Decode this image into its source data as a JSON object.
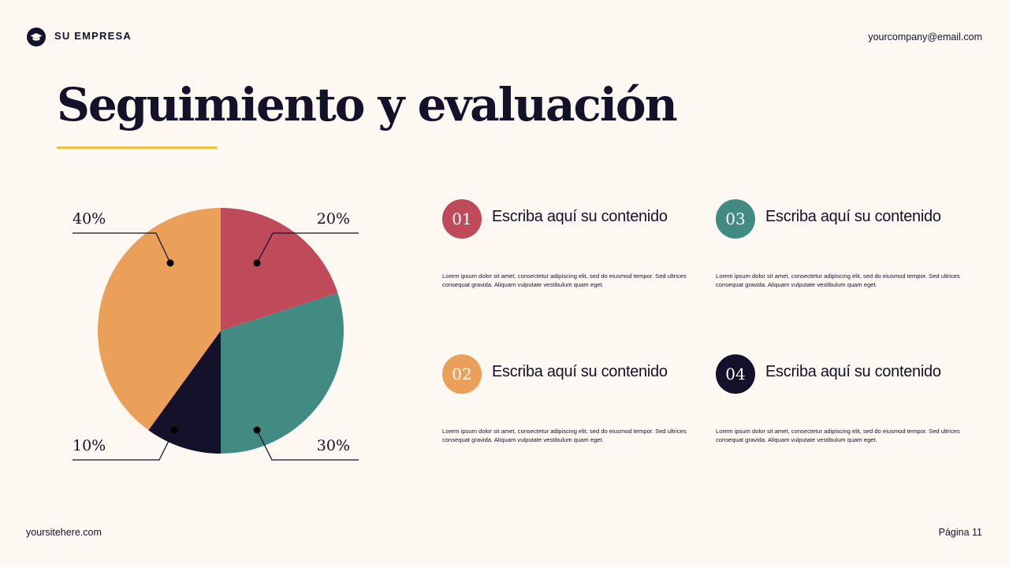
{
  "header": {
    "brand": "SU EMPRESA",
    "email": "yourcompany@email.com"
  },
  "title": "Seguimiento y evaluación",
  "colors": {
    "background": "#fdf8f1",
    "accent_rule": "#f0c14b",
    "red": "#bf4a59",
    "teal": "#428b83",
    "navy": "#14112b",
    "orange": "#eba05a"
  },
  "chart_data": {
    "type": "pie",
    "values": [
      20,
      30,
      10,
      40
    ],
    "labels": [
      "20%",
      "30%",
      "10%",
      "40%"
    ],
    "colors": [
      "#bf4a59",
      "#428b83",
      "#14112b",
      "#eba05a"
    ],
    "start": "top",
    "direction": "clockwise"
  },
  "items": [
    {
      "number": "01",
      "title": "Escriba aquí su contenido",
      "color": "#bf4a59",
      "desc": "Lorem ipsum dolor sit amet, consectetur adipiscing elit, sed do eiusmod tempor. Sed ultrices consequat gravida. Aliquam vulputate vestibulum quam eget."
    },
    {
      "number": "02",
      "title": "Escriba aquí su contenido",
      "color": "#eba05a",
      "desc": "Lorem ipsum dolor sit amet, consectetur adipiscing elit, sed do eiusmod tempor. Sed ultrices consequat gravida. Aliquam vulputate vestibulum quam eget."
    },
    {
      "number": "03",
      "title": "Escriba aquí su contenido",
      "color": "#428b83",
      "desc": "Lorem ipsum dolor sit amet, consectetur adipiscing elit, sed do eiusmod tempor. Sed ultrices consequat gravida. Aliquam vulputate vestibulum quam eget."
    },
    {
      "number": "04",
      "title": "Escriba aquí su contenido",
      "color": "#14112b",
      "desc": "Lorem ipsum dolor sit amet, consectetur adipiscing elit, sed do eiusmod tempor. Sed ultrices consequat gravida. Aliquam vulputate vestibulum quam eget."
    }
  ],
  "footer": {
    "site": "yoursitehere.com",
    "page": "Página 11"
  }
}
